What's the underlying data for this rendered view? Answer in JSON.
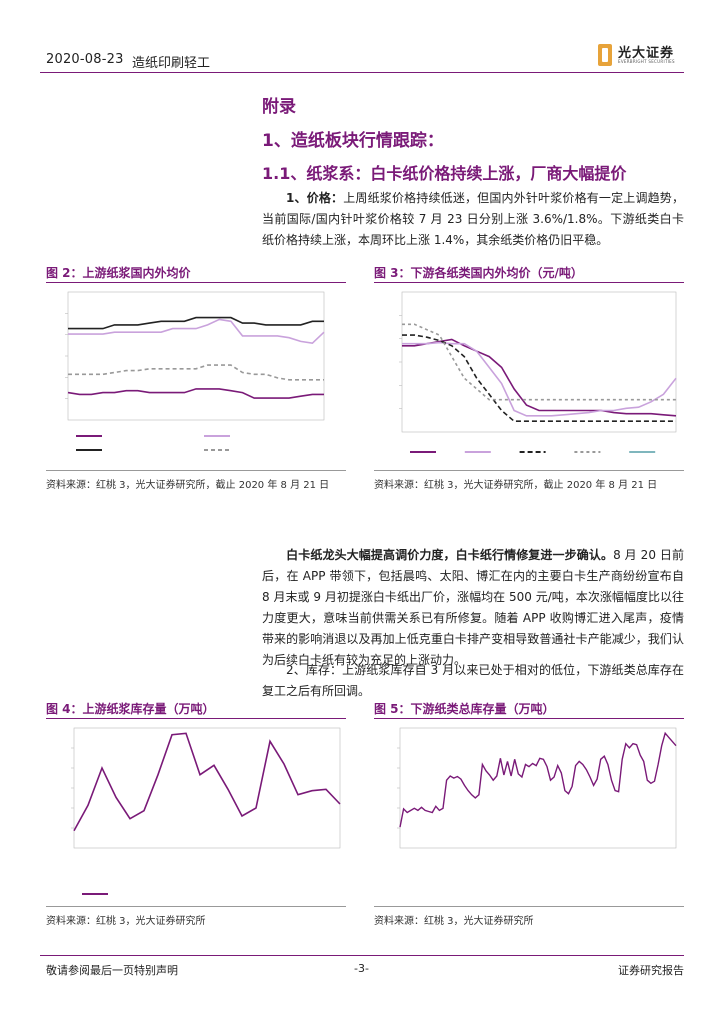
{
  "header": {
    "date": "2020-08-23",
    "section": "造纸印刷轻工",
    "brand": "光大证券",
    "brand_sub": "EVERBRIGHT SECURITIES"
  },
  "appendix_title": "附录",
  "section_title": "1、造纸板块行情跟踪：",
  "subsection_title": "1.1、纸浆系：白卡纸价格持续上涨，厂商大幅提价",
  "para1": {
    "lead": "1、价格：",
    "text": "上周纸浆价格持续低迷，但国内外针叶浆价格有一定上调趋势，当前国际/国内针叶浆价格较 7 月 23 日分别上涨 3.6%/1.8%。下游纸类白卡纸价格持续上涨，本周环比上涨 1.4%，其余纸类价格仍旧平稳。"
  },
  "para2": {
    "lead": "白卡纸龙头大幅提高调价力度，白卡纸行情修复进一步确认。",
    "text": "8 月 20 日前后，在 APP 带领下，包括晨鸣、太阳、博汇在内的主要白卡生产商纷纷宣布自 8 月末或 9 月初提涨白卡纸出厂价，涨幅均在 500 元/吨，本次涨幅幅度比以往力度更大，意味当前供需关系已有所修复。随着 APP 收购博汇进入尾声，疫情带来的影响消退以及再加上低克重白卡排产变相导致普通社卡产能减少，我们认为后续白卡纸有较为充足的上涨动力。"
  },
  "para3": {
    "lead": "",
    "text": "2、库存：上游纸浆库存自 3 月以来已处于相对的低位，下游纸类总库存在复工之后有所回调。"
  },
  "fig2": {
    "title": "图 2：上游纸浆国内外均价",
    "source": "资料来源：红桃 3，光大证券研究所，截止 2020 年 8 月 21 日"
  },
  "fig3": {
    "title": "图 3：下游各纸类国内外均价（元/吨）",
    "source": "资料来源：红桃 3，光大证券研究所，截止 2020 年 8 月 21 日"
  },
  "fig4": {
    "title": "图 4：上游纸浆库存量（万吨）",
    "source": "资料来源：红桃 3，光大证券研究所"
  },
  "fig5": {
    "title": "图 5：下游纸类总库存量（万吨）",
    "source": "资料来源：红桃 3，光大证券研究所"
  },
  "footer": {
    "left": "敬请参阅最后一页特别声明",
    "page": "-3-",
    "right": "证券研究报告"
  },
  "colors": {
    "accent": "#7a1a78",
    "light_purple": "#c9a2dc",
    "dark": "#222222",
    "gray": "#999999",
    "teal": "#7fb6bd"
  },
  "chart_data": [
    {
      "id": "fig2",
      "type": "line",
      "title": "图 2：上游纸浆国内外均价",
      "series": [
        {
          "color": "#7a1a78",
          "dash": "",
          "values": [
            5.45,
            5.44,
            5.44,
            5.45,
            5.45,
            5.46,
            5.46,
            5.45,
            5.45,
            5.45,
            5.45,
            5.47,
            5.47,
            5.47,
            5.46,
            5.45,
            5.42,
            5.42,
            5.42,
            5.42,
            5.43,
            5.44,
            5.44
          ]
        },
        {
          "color": "#c9a2dc",
          "dash": "",
          "values": [
            5.77,
            5.77,
            5.77,
            5.77,
            5.78,
            5.78,
            5.78,
            5.78,
            5.78,
            5.8,
            5.8,
            5.8,
            5.82,
            5.85,
            5.84,
            5.76,
            5.76,
            5.76,
            5.76,
            5.75,
            5.73,
            5.72,
            5.78
          ]
        },
        {
          "color": "#222222",
          "dash": "",
          "values": [
            5.8,
            5.8,
            5.8,
            5.8,
            5.82,
            5.82,
            5.82,
            5.83,
            5.84,
            5.84,
            5.84,
            5.86,
            5.86,
            5.86,
            5.86,
            5.83,
            5.83,
            5.82,
            5.82,
            5.82,
            5.82,
            5.84,
            5.84
          ]
        },
        {
          "color": "#999999",
          "dash": "4,3",
          "values": [
            5.55,
            5.55,
            5.55,
            5.55,
            5.56,
            5.57,
            5.57,
            5.58,
            5.58,
            5.58,
            5.58,
            5.58,
            5.6,
            5.6,
            5.6,
            5.56,
            5.55,
            5.55,
            5.53,
            5.52,
            5.52,
            5.52,
            5.52
          ]
        }
      ],
      "ylim": [
        5.3,
        6.0
      ]
    },
    {
      "id": "fig3",
      "type": "line",
      "title": "图 3：下游各纸类国内外均价（元/吨）",
      "series": [
        {
          "color": "#7a1a78",
          "dash": "",
          "values": [
            5700,
            5700,
            5720,
            5740,
            5760,
            5700,
            5650,
            5600,
            5500,
            5300,
            5150,
            5100,
            5100,
            5100,
            5100,
            5100,
            5100,
            5080,
            5070,
            5070,
            5070,
            5060,
            5050
          ]
        },
        {
          "color": "#c9a2dc",
          "dash": "",
          "values": [
            5720,
            5720,
            5720,
            5730,
            5720,
            5720,
            5650,
            5500,
            5350,
            5100,
            5050,
            5050,
            5050,
            5060,
            5070,
            5080,
            5100,
            5100,
            5120,
            5130,
            5180,
            5250,
            5400
          ]
        },
        {
          "color": "#222222",
          "dash": "5,3",
          "values": [
            5800,
            5800,
            5780,
            5750,
            5700,
            5600,
            5400,
            5250,
            5100,
            5000,
            5000,
            5000,
            5000,
            5000,
            5000,
            5000,
            5000,
            5000,
            5000,
            5000,
            5000,
            5000,
            5000
          ]
        },
        {
          "color": "#999999",
          "dash": "3,3",
          "values": [
            5900,
            5900,
            5850,
            5800,
            5600,
            5400,
            5300,
            5200,
            5200,
            5200,
            5200,
            5200,
            5200,
            5200,
            5200,
            5200,
            5200,
            5200,
            5200,
            5200,
            5200,
            5200,
            5200
          ]
        },
        {
          "color": "#7fb6bd",
          "dash": "",
          "values": [
            null,
            null,
            null,
            null,
            null,
            null,
            null,
            null,
            null,
            null,
            null,
            null,
            null,
            null,
            null,
            null,
            null,
            null,
            null,
            null,
            null,
            null,
            null
          ]
        }
      ],
      "ylim": [
        4900,
        6200
      ]
    },
    {
      "id": "fig4",
      "type": "line",
      "title": "图 4：上游纸浆库存量（万吨）",
      "series": [
        {
          "color": "#7a1a78",
          "dash": "",
          "values": [
            163,
            182,
            210,
            188,
            172,
            178,
            205,
            235,
            236,
            205,
            212,
            194,
            174,
            180,
            230,
            213,
            190,
            193,
            194,
            183
          ]
        }
      ],
      "ylim": [
        150,
        240
      ]
    },
    {
      "id": "fig5",
      "type": "line",
      "title": "图 5：下游纸类总库存量（万吨）",
      "series": [
        {
          "color": "#7a1a78",
          "dash": "",
          "values": [
            200,
            235,
            228,
            232,
            236,
            232,
            238,
            232,
            230,
            228,
            240,
            232,
            236,
            290,
            298,
            294,
            297,
            292,
            280,
            270,
            262,
            256,
            262,
            320,
            308,
            300,
            290,
            298,
            332,
            300,
            326,
            298,
            330,
            302,
            296,
            320,
            316,
            322,
            318,
            332,
            330,
            316,
            290,
            296,
            318,
            304,
            270,
            264,
            278,
            318,
            326,
            320,
            310,
            296,
            280,
            292,
            330,
            336,
            320,
            290,
            270,
            268,
            330,
            360,
            352,
            360,
            358,
            338,
            326,
            290,
            284,
            288,
            320,
            356,
            380,
            372,
            364,
            356
          ]
        }
      ],
      "ylim": [
        160,
        390
      ]
    }
  ]
}
